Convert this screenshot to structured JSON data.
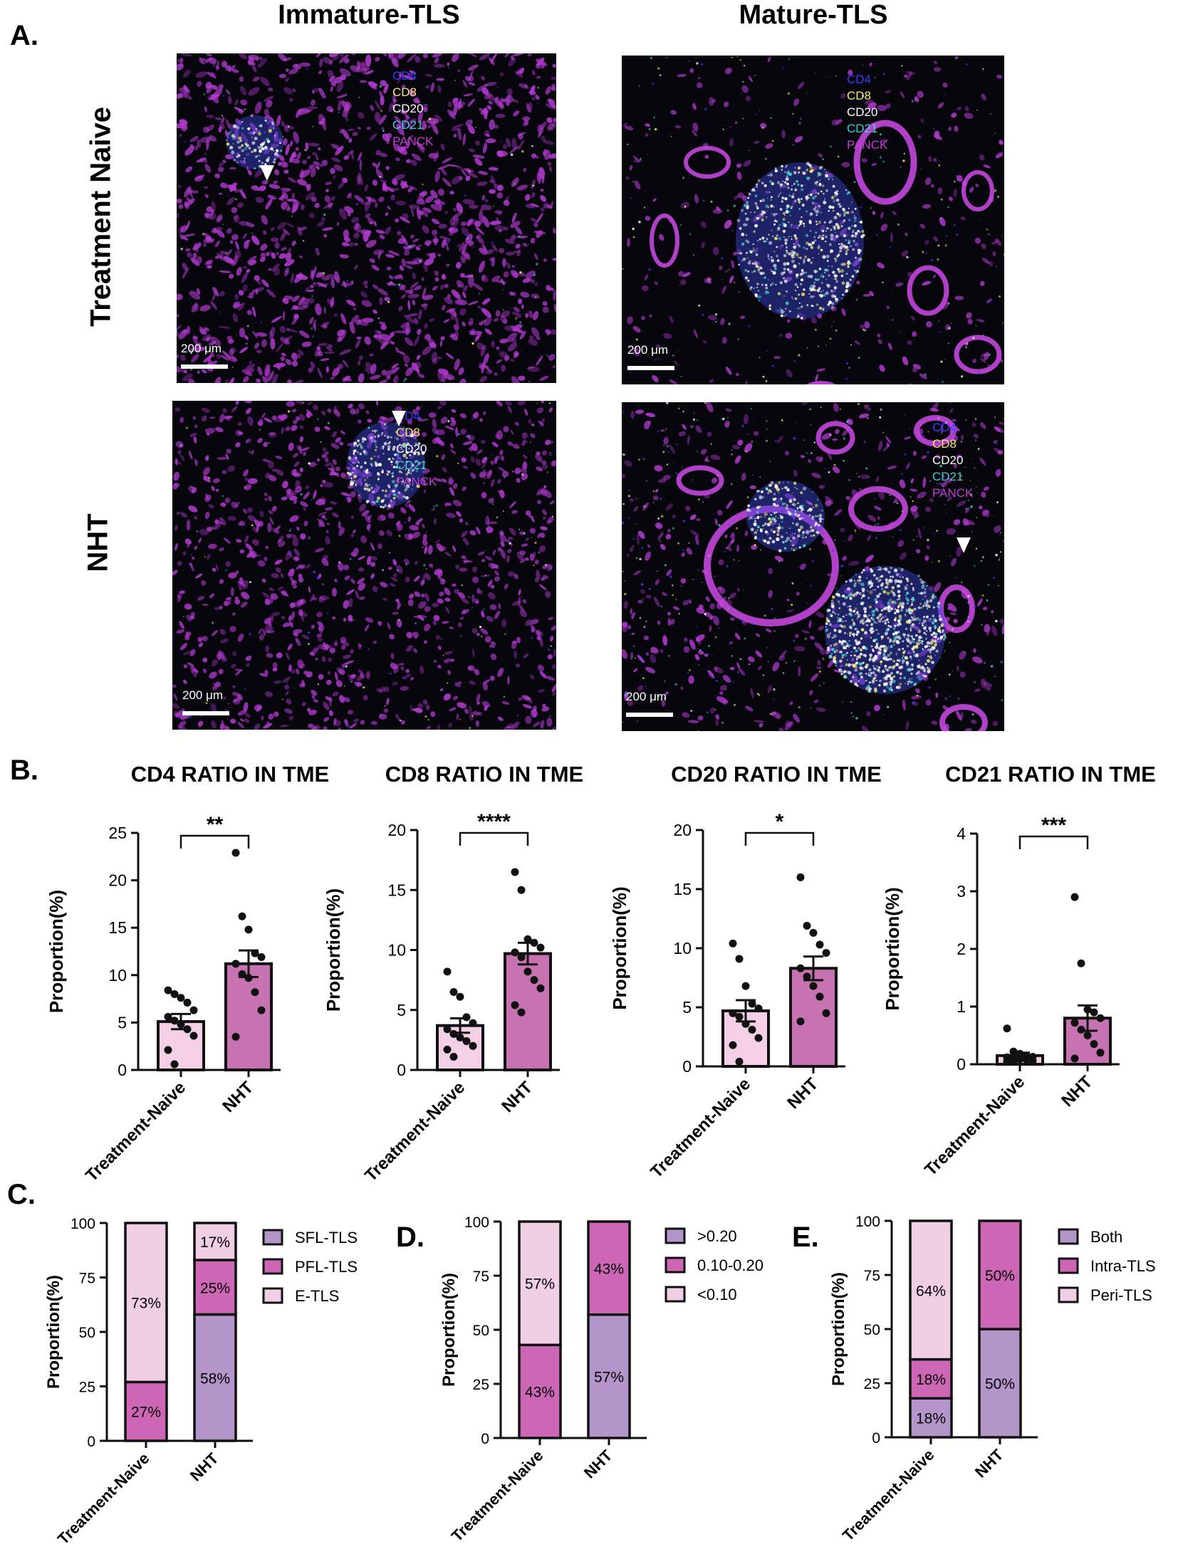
{
  "panel_letters": {
    "a": "A.",
    "b": "B.",
    "c": "C.",
    "d": "D.",
    "e": "E."
  },
  "panel_a": {
    "col_titles": [
      "Immature-TLS",
      "Mature-TLS"
    ],
    "row_titles": [
      "Treatment Naive",
      "NHT"
    ],
    "channel_legend": [
      {
        "label": "CD4",
        "color": "#3a3dff"
      },
      {
        "label": "CD8",
        "color": "#f2e96a"
      },
      {
        "label": "CD20",
        "color": "#ffffff"
      },
      {
        "label": "CD21",
        "color": "#3ecfcf"
      },
      {
        "label": "PANCK",
        "color": "#c23fd0"
      }
    ],
    "scale_label": "200 μm"
  },
  "colors": {
    "tn_bar": "#f3d0e6",
    "nht_bar": "#c873b1",
    "sfl": "#b395c9",
    "pfl": "#cc66b5",
    "etls": "#f0cfe5"
  },
  "chart_data": [
    {
      "id": "cd4",
      "type": "bar",
      "title": "CD4 RATIO IN TME",
      "ylabel": "Proportion(%)",
      "categories": [
        "Treatment-Naive",
        "NHT"
      ],
      "ylim": [
        0,
        25
      ],
      "yticks": [
        0,
        5,
        10,
        15,
        20,
        25
      ],
      "means": [
        5.1,
        11.2
      ],
      "sem": [
        0.8,
        1.4
      ],
      "significance": "**",
      "points": [
        [
          8.4,
          8.0,
          7.6,
          7.1,
          6.3,
          5.6,
          5.2,
          4.8,
          4.3,
          3.6,
          2.1,
          0.6
        ],
        [
          22.9,
          16.2,
          14.8,
          12.3,
          11.9,
          11.2,
          10.1,
          9.7,
          8.2,
          6.3,
          3.5
        ]
      ]
    },
    {
      "id": "cd8",
      "type": "bar",
      "title": "CD8 RATIO IN TME",
      "ylabel": "Proportion(%)",
      "categories": [
        "Treatment-Naive",
        "NHT"
      ],
      "ylim": [
        0,
        20
      ],
      "yticks": [
        0,
        5,
        10,
        15,
        20
      ],
      "means": [
        3.7,
        9.7
      ],
      "sem": [
        0.6,
        0.9
      ],
      "significance": "****",
      "points": [
        [
          8.2,
          6.5,
          6.1,
          4.4,
          3.9,
          3.4,
          3.0,
          2.7,
          2.4,
          2.0,
          1.7,
          1.1
        ],
        [
          16.5,
          15.0,
          10.9,
          10.6,
          10.2,
          9.8,
          9.4,
          8.2,
          7.5,
          6.8,
          5.4,
          4.8
        ]
      ]
    },
    {
      "id": "cd20",
      "type": "bar",
      "title": "CD20 RATIO IN TME",
      "ylabel": "Proportion(%)",
      "categories": [
        "Treatment-Naive",
        "NHT"
      ],
      "ylim": [
        0,
        20
      ],
      "yticks": [
        0,
        5,
        10,
        15,
        20
      ],
      "means": [
        4.7,
        8.3
      ],
      "sem": [
        0.9,
        1.0
      ],
      "significance": "*",
      "points": [
        [
          10.4,
          9.1,
          6.8,
          5.3,
          4.9,
          4.5,
          4.2,
          3.6,
          3.1,
          2.4,
          1.8,
          0.4
        ],
        [
          16.0,
          11.9,
          11.3,
          10.3,
          9.6,
          8.3,
          7.6,
          6.8,
          5.9,
          4.5,
          3.8
        ]
      ]
    },
    {
      "id": "cd21",
      "type": "bar",
      "title": "CD21 RATIO IN TME",
      "ylabel": "Proportion(%)",
      "categories": [
        "Treatment-Naive",
        "NHT"
      ],
      "ylim": [
        0,
        4
      ],
      "yticks": [
        0,
        1,
        2,
        3,
        4
      ],
      "means": [
        0.15,
        0.8
      ],
      "sem": [
        0.05,
        0.22
      ],
      "significance": "***",
      "points": [
        [
          0.62,
          0.22,
          0.18,
          0.15,
          0.13,
          0.12,
          0.1,
          0.09,
          0.08,
          0.06,
          0.05,
          0.04
        ],
        [
          2.9,
          1.75,
          0.95,
          0.9,
          0.8,
          0.72,
          0.6,
          0.5,
          0.35,
          0.2,
          0.1
        ]
      ]
    },
    {
      "id": "c",
      "type": "bar",
      "stacked": true,
      "ylabel": "Proportion(%)",
      "categories": [
        "Treatment-Naive",
        "NHT"
      ],
      "ylim": [
        0,
        100
      ],
      "yticks": [
        0,
        25,
        50,
        75,
        100
      ],
      "series": [
        {
          "name": "SFL-TLS",
          "values": [
            0,
            58
          ],
          "labels": [
            "",
            "58%"
          ]
        },
        {
          "name": "PFL-TLS",
          "values": [
            27,
            25
          ],
          "labels": [
            "27%",
            "25%"
          ]
        },
        {
          "name": "E-TLS",
          "values": [
            73,
            17
          ],
          "labels": [
            "73%",
            "17%"
          ]
        }
      ],
      "series_colors": [
        "#b395c9",
        "#cc66b5",
        "#f0cfe5"
      ]
    },
    {
      "id": "d",
      "type": "bar",
      "stacked": true,
      "ylabel": "Proportion(%)",
      "categories": [
        "Treatment-Naive",
        "NHT"
      ],
      "ylim": [
        0,
        100
      ],
      "yticks": [
        0,
        25,
        50,
        75,
        100
      ],
      "series": [
        {
          "name": ">0.20",
          "values": [
            0,
            57
          ],
          "labels": [
            "",
            "57%"
          ]
        },
        {
          "name": "0.10-0.20",
          "values": [
            43,
            43
          ],
          "labels": [
            "43%",
            "43%"
          ]
        },
        {
          "name": "<0.10",
          "values": [
            57,
            0
          ],
          "labels": [
            "57%",
            ""
          ]
        }
      ],
      "series_colors": [
        "#b395c9",
        "#cc66b5",
        "#f0cfe5"
      ]
    },
    {
      "id": "e",
      "type": "bar",
      "stacked": true,
      "ylabel": "Proportion(%)",
      "categories": [
        "Treatment-Naive",
        "NHT"
      ],
      "ylim": [
        0,
        100
      ],
      "yticks": [
        0,
        25,
        50,
        75,
        100
      ],
      "series": [
        {
          "name": "Both",
          "values": [
            18,
            50
          ],
          "labels": [
            "18%",
            "50%"
          ]
        },
        {
          "name": "Intra-TLS",
          "values": [
            18,
            50
          ],
          "labels": [
            "18%",
            "50%"
          ]
        },
        {
          "name": "Peri-TLS",
          "values": [
            64,
            0
          ],
          "labels": [
            "64%",
            ""
          ]
        }
      ],
      "series_colors": [
        "#b395c9",
        "#cc66b5",
        "#f0cfe5"
      ]
    }
  ]
}
